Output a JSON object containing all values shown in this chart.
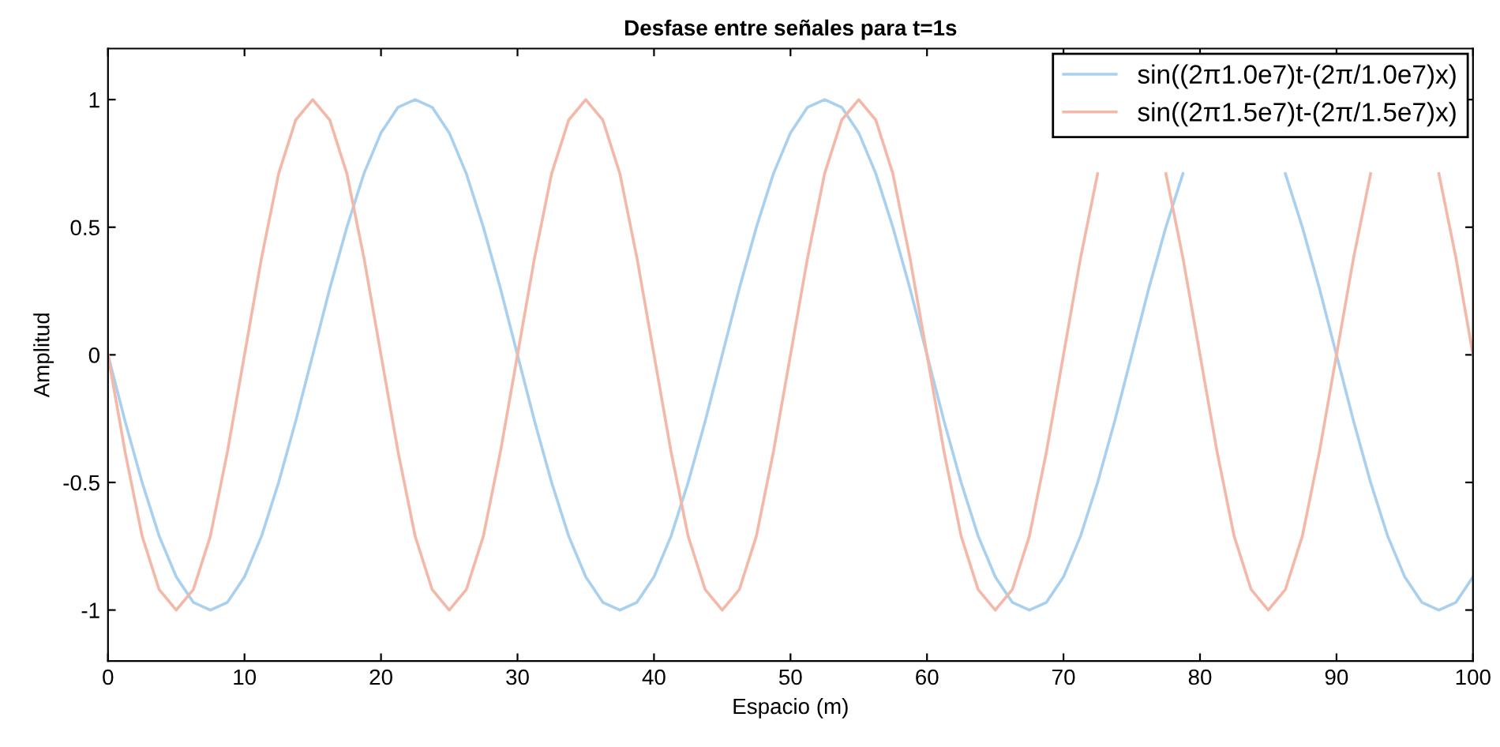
{
  "chart_data": {
    "type": "line",
    "title": "Desfase entre señales para t=1s",
    "xlabel": "Espacio (m)",
    "ylabel": "Amplitud",
    "x": [
      0,
      1.25,
      2.5,
      3.75,
      5,
      6.25,
      7.5,
      8.75,
      10,
      11.25,
      12.5,
      13.75,
      15,
      16.25,
      17.5,
      18.75,
      20,
      21.25,
      22.5,
      23.75,
      25,
      26.25,
      27.5,
      28.75,
      30,
      31.25,
      32.5,
      33.75,
      35,
      36.25,
      37.5,
      38.75,
      40,
      41.25,
      42.5,
      43.75,
      45,
      46.25,
      47.5,
      48.75,
      50,
      51.25,
      52.5,
      53.75,
      55,
      56.25,
      57.5,
      58.75,
      60,
      61.25,
      62.5,
      63.75,
      65,
      66.25,
      67.5,
      68.75,
      70,
      71.25,
      72.5,
      73.75,
      75,
      76.25,
      77.5,
      78.75,
      80,
      81.25,
      82.5,
      83.75,
      85,
      86.25,
      87.5,
      88.75,
      90,
      91.25,
      92.5,
      93.75,
      95,
      96.25,
      97.5,
      98.75,
      100
    ],
    "series": [
      {
        "name": "sin((2π1.0e7)t-(2π/1.0e7)x)",
        "color": "#a9d0ee",
        "values": [
          0,
          -0.26,
          -0.5,
          -0.71,
          -0.87,
          -0.97,
          -1,
          -0.97,
          -0.87,
          -0.71,
          -0.5,
          -0.26,
          0,
          0.26,
          0.5,
          0.71,
          0.87,
          0.97,
          1,
          0.97,
          0.87,
          0.71,
          0.5,
          0.26,
          0,
          -0.26,
          -0.5,
          -0.71,
          -0.87,
          -0.97,
          -1,
          -0.97,
          -0.87,
          -0.71,
          -0.5,
          -0.26,
          0,
          0.26,
          0.5,
          0.71,
          0.87,
          0.97,
          1,
          0.97,
          0.87,
          0.71,
          0.5,
          0.26,
          0,
          -0.26,
          -0.5,
          -0.71,
          -0.87,
          -0.97,
          -1,
          -0.97,
          -0.87,
          -0.71,
          -0.5,
          -0.26,
          0,
          0.26,
          0.5,
          0.71,
          null,
          null,
          null,
          null,
          null,
          0.71,
          0.5,
          0.26,
          0,
          -0.26,
          -0.5,
          -0.71,
          -0.87,
          -0.97,
          -1,
          -0.97,
          -0.87
        ]
      },
      {
        "name": "sin((2π1.5e7)t-(2π/1.5e7)x)",
        "color": "#f4b8a8",
        "values": [
          0,
          -0.38,
          -0.71,
          -0.92,
          -1,
          -0.92,
          -0.71,
          -0.38,
          0,
          0.38,
          0.71,
          0.92,
          1,
          0.92,
          0.71,
          0.38,
          0,
          -0.38,
          -0.71,
          -0.92,
          -1,
          -0.92,
          -0.71,
          -0.38,
          0,
          0.38,
          0.71,
          0.92,
          1,
          0.92,
          0.71,
          0.38,
          0,
          -0.38,
          -0.71,
          -0.92,
          -1,
          -0.92,
          -0.71,
          -0.38,
          0,
          0.38,
          0.71,
          0.92,
          1,
          0.92,
          0.71,
          0.38,
          0,
          -0.38,
          -0.71,
          -0.92,
          -1,
          -0.92,
          -0.71,
          -0.38,
          0,
          0.38,
          0.71,
          null,
          null,
          null,
          0.71,
          0.38,
          0,
          -0.38,
          -0.71,
          -0.92,
          -1,
          -0.92,
          -0.71,
          -0.38,
          0,
          0.38,
          0.71,
          null,
          null,
          null,
          0.71,
          0.38,
          0
        ]
      }
    ],
    "xlim": [
      0,
      100
    ],
    "xticks": [
      0,
      10,
      20,
      30,
      40,
      50,
      60,
      70,
      80,
      90,
      100
    ],
    "ylim": [
      -1.2,
      1.2
    ],
    "yticks": [
      -1,
      -0.5,
      0,
      0.5,
      1
    ],
    "grid": false,
    "legend": "top right",
    "marker": "none",
    "line_style": "solid"
  }
}
